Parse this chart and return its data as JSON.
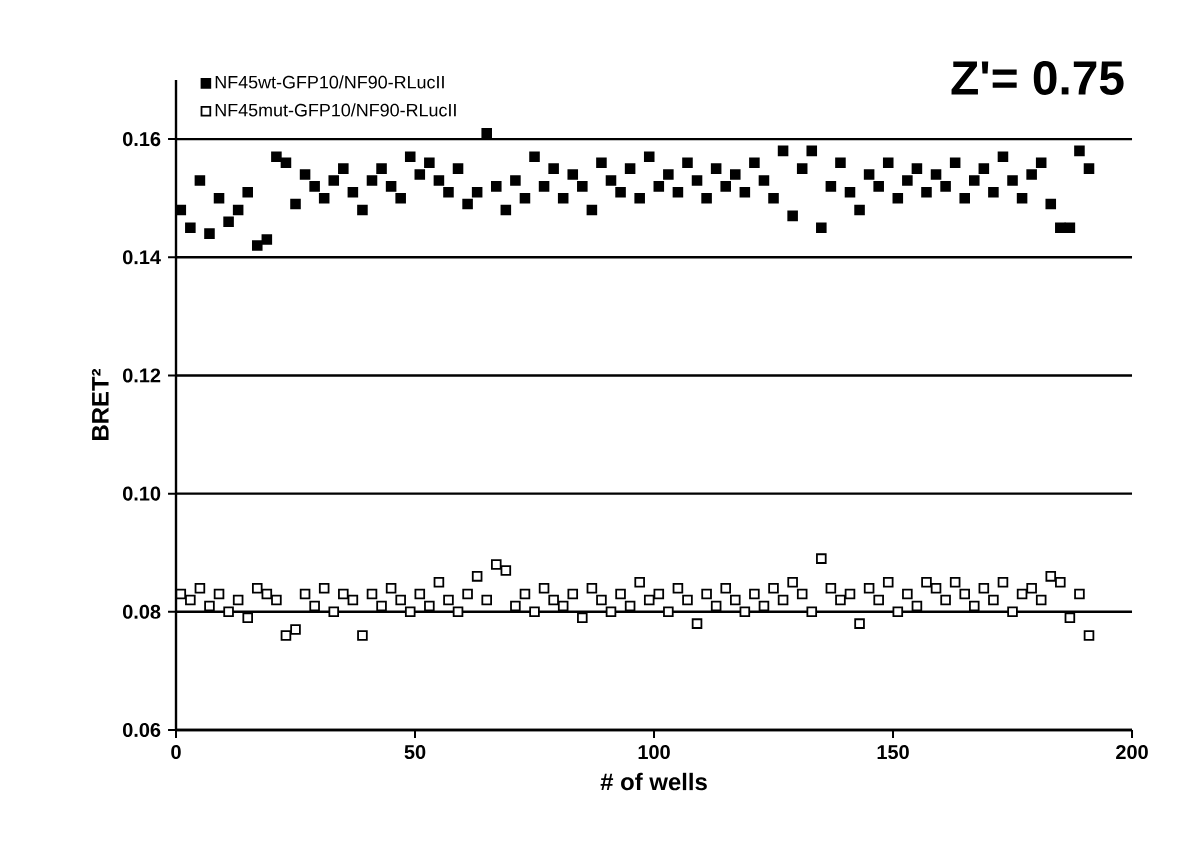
{
  "chart_data": {
    "type": "scatter",
    "xlabel": "# of wells",
    "ylabel": "BRET²",
    "annotations": [
      "Z'= 0.75"
    ],
    "xlim": [
      0,
      200
    ],
    "ylim": [
      0.06,
      0.17
    ],
    "xticks": [
      0,
      50,
      100,
      150,
      200
    ],
    "yticks": [
      0.06,
      0.08,
      {
        "value": 0.1,
        "label": "0.10"
      },
      0.12,
      0.14,
      0.16
    ],
    "grid": "y",
    "legend": "top left",
    "marker": "square",
    "series": [
      {
        "name": "NF45wt-GFP10/NF90-RLucII",
        "color": "#000000",
        "x": [
          1,
          3,
          5,
          7,
          9,
          11,
          13,
          15,
          17,
          19,
          21,
          23,
          25,
          27,
          29,
          31,
          33,
          35,
          37,
          39,
          41,
          43,
          45,
          47,
          49,
          51,
          53,
          55,
          57,
          59,
          61,
          63,
          65,
          67,
          69,
          71,
          73,
          75,
          77,
          79,
          81,
          83,
          85,
          87,
          89,
          91,
          93,
          95,
          97,
          99,
          101,
          103,
          105,
          107,
          109,
          111,
          113,
          115,
          117,
          119,
          121,
          123,
          125,
          127,
          129,
          131,
          133,
          135,
          137,
          139,
          141,
          143,
          145,
          147,
          149,
          151,
          153,
          155,
          157,
          159,
          161,
          163,
          165,
          167,
          169,
          171,
          173,
          175,
          177,
          179,
          181,
          183,
          185,
          187,
          189,
          191
        ],
        "values": [
          0.148,
          0.145,
          0.153,
          0.144,
          0.15,
          0.146,
          0.148,
          0.151,
          0.142,
          0.143,
          0.157,
          0.156,
          0.149,
          0.154,
          0.152,
          0.15,
          0.153,
          0.155,
          0.151,
          0.148,
          0.153,
          0.155,
          0.152,
          0.15,
          0.157,
          0.154,
          0.156,
          0.153,
          0.151,
          0.155,
          0.149,
          0.151,
          0.161,
          0.152,
          0.148,
          0.153,
          0.15,
          0.157,
          0.152,
          0.155,
          0.15,
          0.154,
          0.152,
          0.148,
          0.156,
          0.153,
          0.151,
          0.155,
          0.15,
          0.157,
          0.152,
          0.154,
          0.151,
          0.156,
          0.153,
          0.15,
          0.155,
          0.152,
          0.154,
          0.151,
          0.156,
          0.153,
          0.15,
          0.158,
          0.147,
          0.155,
          0.158,
          0.145,
          0.152,
          0.156,
          0.151,
          0.148,
          0.154,
          0.152,
          0.156,
          0.15,
          0.153,
          0.155,
          0.151,
          0.154,
          0.152,
          0.156,
          0.15,
          0.153,
          0.155,
          0.151,
          0.157,
          0.153,
          0.15,
          0.154,
          0.156,
          0.149,
          0.145,
          0.145,
          0.158,
          0.155
        ]
      },
      {
        "name": "NF45mut-GFP10/NF90-RLucII",
        "color": "#000000",
        "x": [
          1,
          3,
          5,
          7,
          9,
          11,
          13,
          15,
          17,
          19,
          21,
          23,
          25,
          27,
          29,
          31,
          33,
          35,
          37,
          39,
          41,
          43,
          45,
          47,
          49,
          51,
          53,
          55,
          57,
          59,
          61,
          63,
          65,
          67,
          69,
          71,
          73,
          75,
          77,
          79,
          81,
          83,
          85,
          87,
          89,
          91,
          93,
          95,
          97,
          99,
          101,
          103,
          105,
          107,
          109,
          111,
          113,
          115,
          117,
          119,
          121,
          123,
          125,
          127,
          129,
          131,
          133,
          135,
          137,
          139,
          141,
          143,
          145,
          147,
          149,
          151,
          153,
          155,
          157,
          159,
          161,
          163,
          165,
          167,
          169,
          171,
          173,
          175,
          177,
          179,
          181,
          183,
          185,
          187,
          189,
          191
        ],
        "values": [
          0.083,
          0.082,
          0.084,
          0.081,
          0.083,
          0.08,
          0.082,
          0.079,
          0.084,
          0.083,
          0.082,
          0.076,
          0.077,
          0.083,
          0.081,
          0.084,
          0.08,
          0.083,
          0.082,
          0.076,
          0.083,
          0.081,
          0.084,
          0.082,
          0.08,
          0.083,
          0.081,
          0.085,
          0.082,
          0.08,
          0.083,
          0.086,
          0.082,
          0.088,
          0.087,
          0.081,
          0.083,
          0.08,
          0.084,
          0.082,
          0.081,
          0.083,
          0.079,
          0.084,
          0.082,
          0.08,
          0.083,
          0.081,
          0.085,
          0.082,
          0.083,
          0.08,
          0.084,
          0.082,
          0.078,
          0.083,
          0.081,
          0.084,
          0.082,
          0.08,
          0.083,
          0.081,
          0.084,
          0.082,
          0.085,
          0.083,
          0.08,
          0.089,
          0.084,
          0.082,
          0.083,
          0.078,
          0.084,
          0.082,
          0.085,
          0.08,
          0.083,
          0.081,
          0.085,
          0.084,
          0.082,
          0.085,
          0.083,
          0.081,
          0.084,
          0.082,
          0.085,
          0.08,
          0.083,
          0.084,
          0.082,
          0.086,
          0.085,
          0.079,
          0.083,
          0.076
        ]
      }
    ]
  }
}
